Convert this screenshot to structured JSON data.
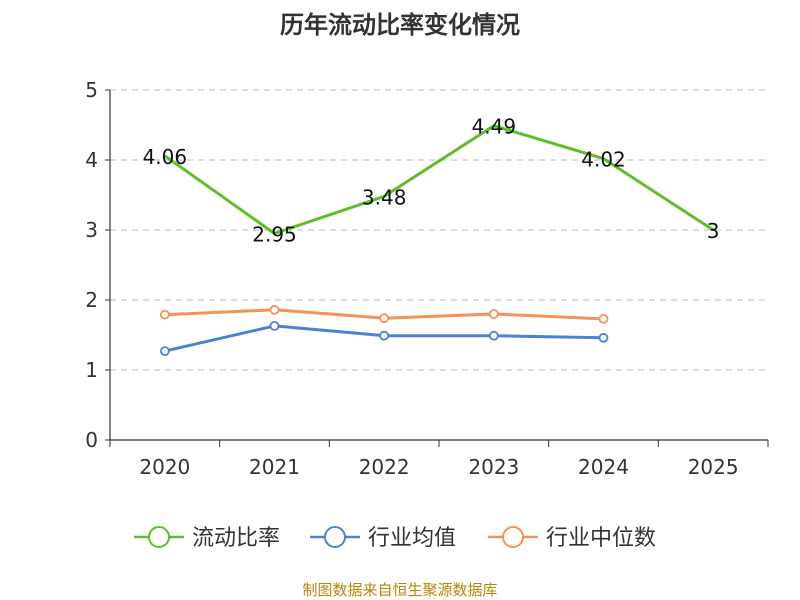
{
  "chart_data": {
    "type": "line",
    "title": "历年流动比率变化情况",
    "categories": [
      "2020",
      "2021",
      "2022",
      "2023",
      "2024",
      "2025"
    ],
    "ylim": [
      0,
      5
    ],
    "yticks": [
      0,
      1,
      2,
      3,
      4,
      5
    ],
    "grid": true,
    "legend_position": "bottom",
    "series": [
      {
        "name": "流动比率",
        "color": "#5cbf2a",
        "values": [
          4.06,
          2.95,
          3.48,
          4.49,
          4.02,
          3
        ],
        "labels": [
          "4.06",
          "2.95",
          "3.48",
          "4.49",
          "4.02",
          "3"
        ],
        "show_markers": false,
        "show_labels": true
      },
      {
        "name": "行业均值",
        "color": "#4e80d6",
        "values": [
          1.27,
          1.63,
          1.49,
          1.49,
          1.46,
          null
        ],
        "show_markers": true,
        "show_labels": false
      },
      {
        "name": "行业中位数",
        "color": "#f4925a",
        "values": [
          1.79,
          1.86,
          1.74,
          1.8,
          1.73,
          null
        ],
        "show_markers": true,
        "show_labels": false
      }
    ],
    "source": "制图数据来自恒生聚源数据库"
  }
}
